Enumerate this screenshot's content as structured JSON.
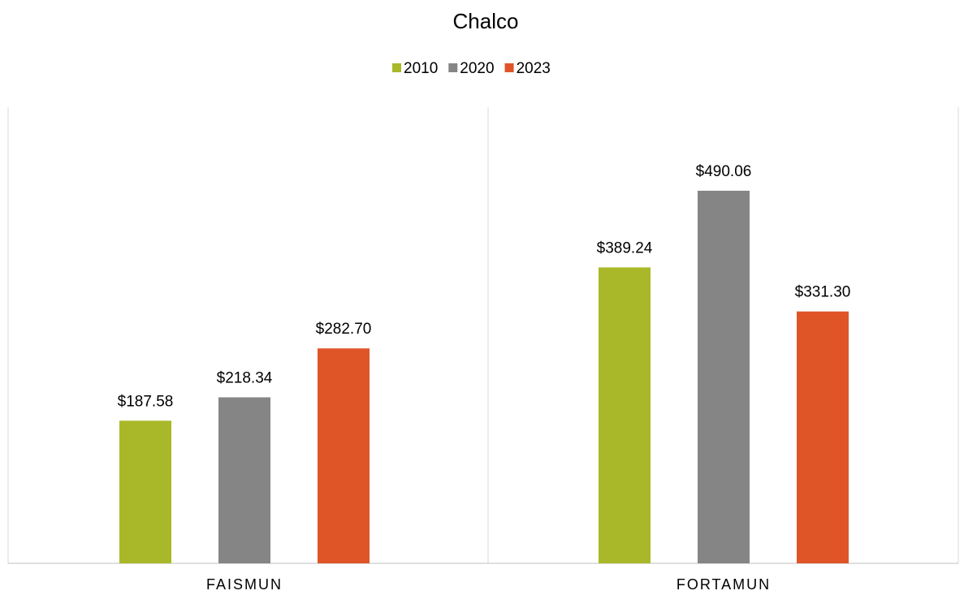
{
  "chart_data": {
    "type": "bar",
    "title": "Chalco",
    "categories": [
      "FAISMUN",
      "FORTAMUN"
    ],
    "series": [
      {
        "name": "2010",
        "color": "#a9b828",
        "values": [
          187.58,
          389.24
        ],
        "value_labels": [
          "$187.58",
          "$389.24"
        ]
      },
      {
        "name": "2020",
        "color": "#858585",
        "values": [
          218.34,
          490.06
        ],
        "value_labels": [
          "$218.34",
          "$490.06"
        ]
      },
      {
        "name": "2023",
        "color": "#e05528",
        "values": [
          282.7,
          331.3
        ],
        "value_labels": [
          "$282.70",
          "$331.30"
        ]
      }
    ],
    "ylim": [
      0,
      600
    ],
    "legend": "top"
  }
}
